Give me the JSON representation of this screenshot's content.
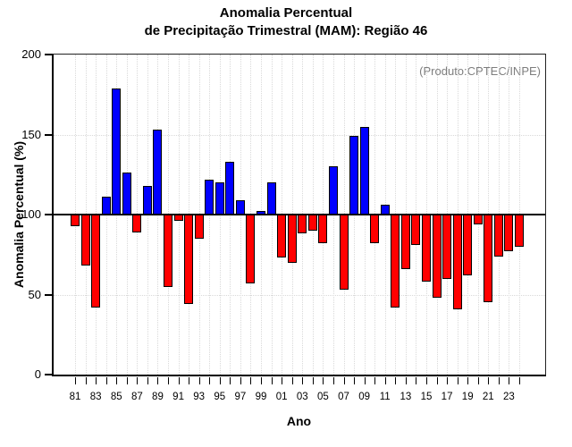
{
  "title": {
    "line1": "Anomalia Percentual",
    "line2": "de Precipitação Trimestral (MAM): Região 46"
  },
  "annotation": "(Produto:CPTEC/INPE)",
  "axes": {
    "y_label": "Anomalia Percentual (%)",
    "x_label": "Ano",
    "y_ticks": [
      "0",
      "50",
      "100",
      "150",
      "200"
    ],
    "x_tick_labels": [
      "81",
      "83",
      "85",
      "87",
      "89",
      "91",
      "93",
      "95",
      "97",
      "99",
      "01",
      "03",
      "05",
      "07",
      "09",
      "11",
      "13",
      "15",
      "17",
      "19",
      "21",
      "23"
    ]
  },
  "colors": {
    "above_baseline": "#0000ff",
    "below_baseline": "#ff0000",
    "bar_stroke": "#000000",
    "grid": "#d9d9d9",
    "annotation_text": "#7e7e7e"
  },
  "chart_data": {
    "type": "bar",
    "title": "Anomalia Percentual de Precipitação Trimestral (MAM): Região 46",
    "xlabel": "Ano",
    "ylabel": "Anomalia Percentual (%)",
    "ylim": [
      0,
      200
    ],
    "baseline": 100,
    "grid": "dotted",
    "legend": "none",
    "categories": [
      "1981",
      "1982",
      "1983",
      "1984",
      "1985",
      "1986",
      "1987",
      "1988",
      "1989",
      "1990",
      "1991",
      "1992",
      "1993",
      "1994",
      "1995",
      "1996",
      "1997",
      "1998",
      "1999",
      "2000",
      "2001",
      "2002",
      "2003",
      "2004",
      "2005",
      "2006",
      "2007",
      "2008",
      "2009",
      "2010",
      "2011",
      "2012",
      "2013",
      "2014",
      "2015",
      "2016",
      "2017",
      "2018",
      "2019",
      "2020",
      "2021",
      "2022",
      "2023",
      "2024"
    ],
    "values": [
      93,
      68,
      42,
      111,
      179,
      126,
      89,
      118,
      153,
      55,
      96,
      44,
      85,
      122,
      120,
      133,
      109,
      57,
      102,
      120,
      73,
      70,
      88,
      90,
      82,
      130,
      53,
      149,
      155,
      82,
      106,
      42,
      66,
      81,
      58,
      48,
      60,
      41,
      62,
      94,
      45,
      74,
      77,
      80
    ],
    "color_rule": "value >= 100 blue, value < 100 red"
  }
}
